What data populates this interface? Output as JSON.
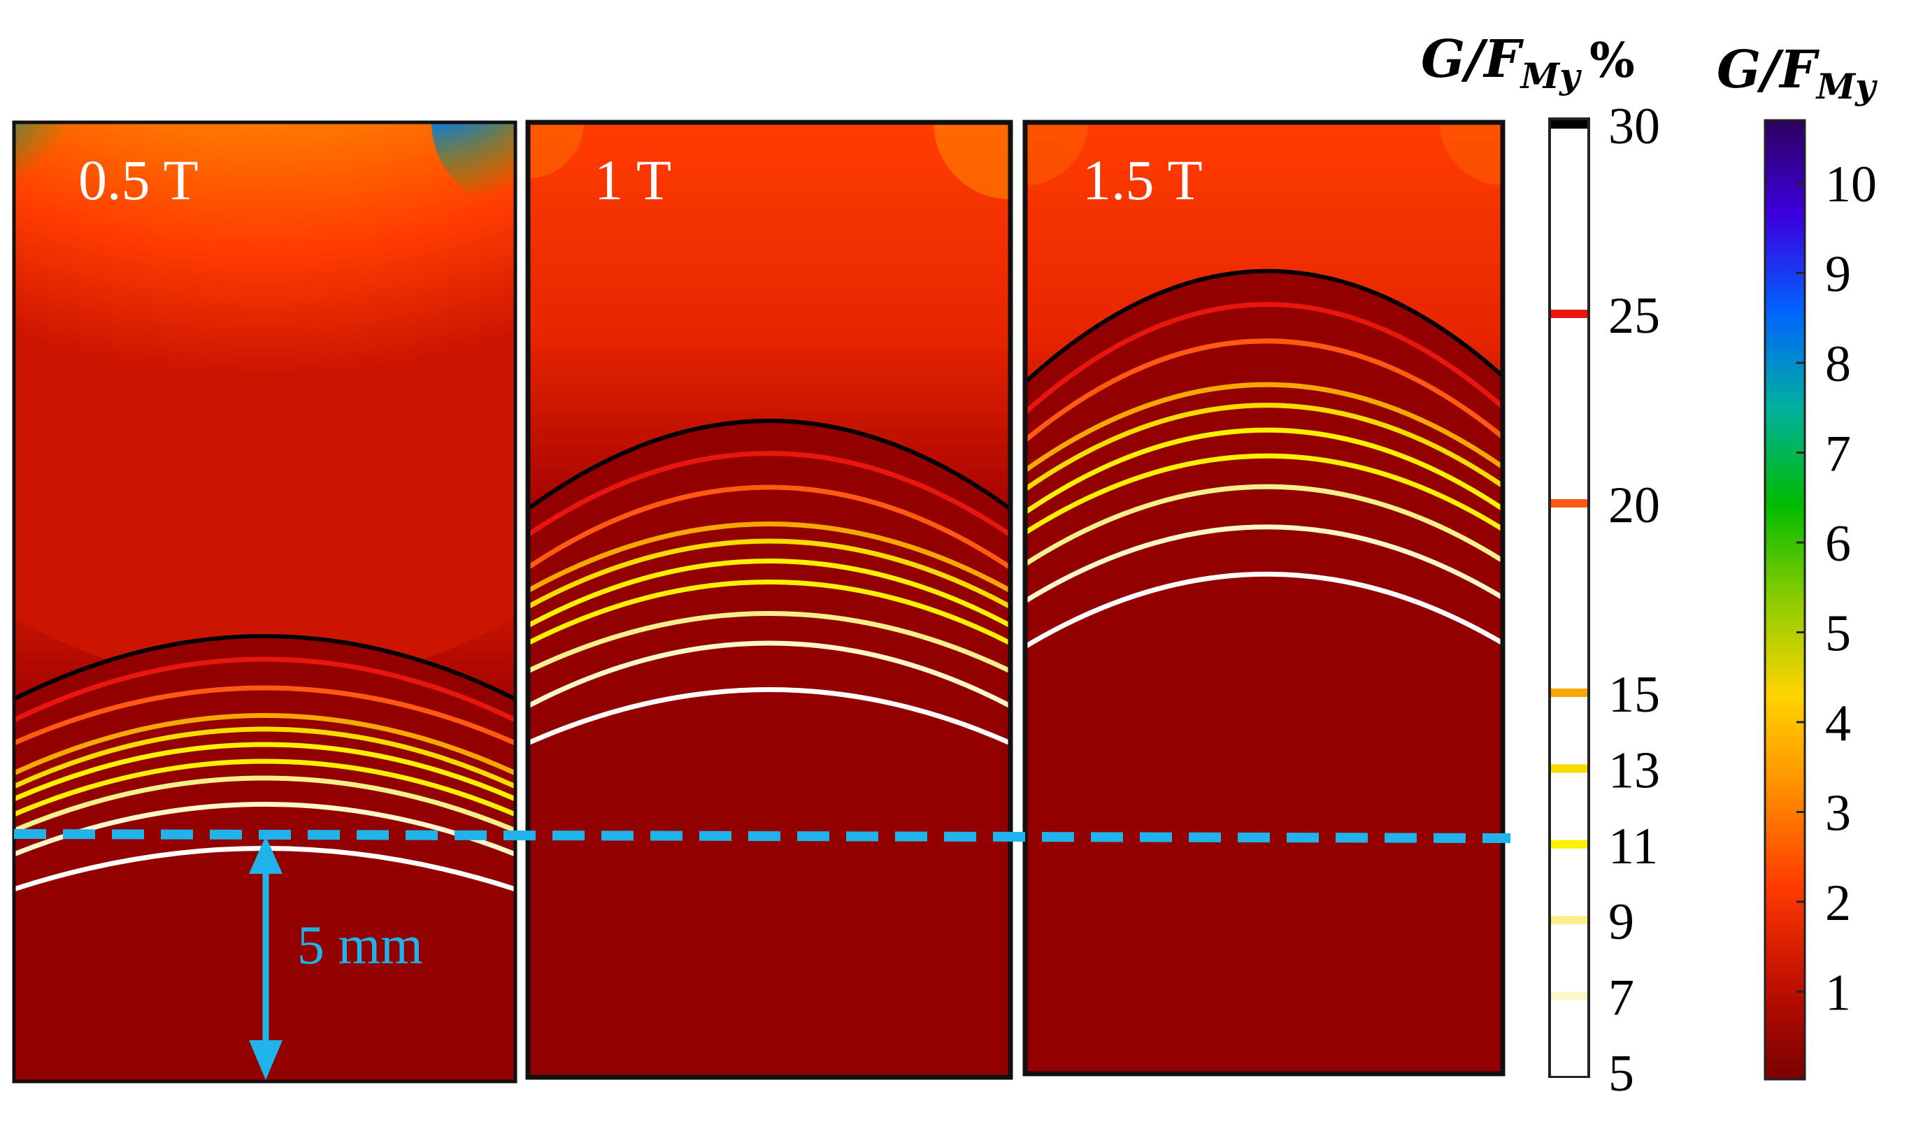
{
  "panels": [
    {
      "label": "0.5 T"
    },
    {
      "label": "1 T"
    },
    {
      "label": "1.5 T"
    }
  ],
  "scale_bar": {
    "label": "5 mm",
    "color": "#1fb3ea"
  },
  "contour_legend": {
    "title": "G/F",
    "title_subscript": "My",
    "title_suffix": "%",
    "ticks": [
      {
        "value": "30",
        "color": "#000000"
      },
      {
        "value": "25",
        "color": "#e8160e"
      },
      {
        "value": "20",
        "color": "#ff5a12"
      },
      {
        "value": "15",
        "color": "#f6a800"
      },
      {
        "value": "13",
        "color": "#f8dc00"
      },
      {
        "value": "11",
        "color": "#fff000"
      },
      {
        "value": "9",
        "color": "#f7ef8a"
      },
      {
        "value": "7",
        "color": "#fbf6cc"
      },
      {
        "value": "5",
        "color": "#ffffff"
      }
    ]
  },
  "color_bar": {
    "title": "G/F",
    "title_subscript": "My",
    "ticks": [
      "10",
      "9",
      "8",
      "7",
      "6",
      "5",
      "4",
      "3",
      "2",
      "1"
    ],
    "colormap": [
      "#7a0000",
      "#c01000",
      "#ff3a00",
      "#ff8c00",
      "#ffd400",
      "#8ccc00",
      "#00bb00",
      "#00b0a0",
      "#0064ff",
      "#3c00e0",
      "#2c0060"
    ]
  }
}
